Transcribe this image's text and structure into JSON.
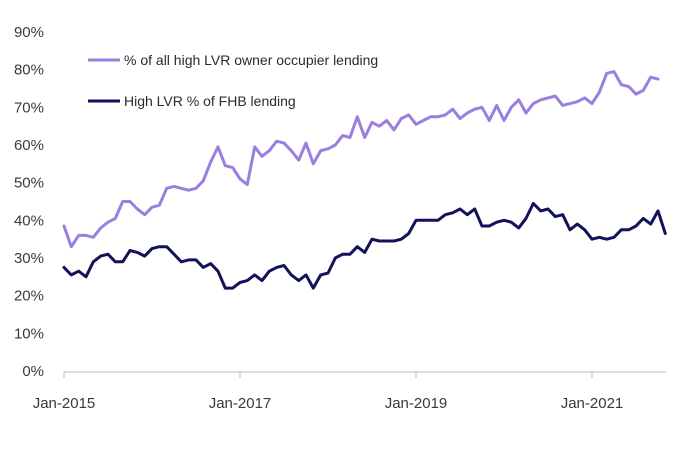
{
  "chart_data": {
    "type": "line",
    "title": "",
    "xlabel": "",
    "ylabel": "",
    "x_start": "Jan-2015",
    "x_tick_labels": [
      "Jan-2015",
      "Jan-2017",
      "Jan-2019",
      "Jan-2021"
    ],
    "y_ticks": [
      0,
      10,
      20,
      30,
      40,
      50,
      60,
      70,
      80,
      90
    ],
    "y_tick_labels": [
      "0%",
      "10%",
      "20%",
      "30%",
      "40%",
      "50%",
      "60%",
      "70%",
      "80%",
      "90%"
    ],
    "ylim": [
      0,
      90
    ],
    "grid": false,
    "legend_position": "top-left",
    "series": [
      {
        "name": "% of all high LVR owner occupier lending",
        "color": "#9a7fe0",
        "values": [
          38.5,
          33,
          36,
          36,
          35.5,
          38,
          39.5,
          40.5,
          45,
          45,
          43,
          41.5,
          43.5,
          44,
          48.5,
          49,
          48.5,
          48,
          48.5,
          50.5,
          55.5,
          59.5,
          54.5,
          54,
          51,
          49.5,
          59.5,
          57,
          58.5,
          61,
          60.5,
          58.5,
          56,
          60.5,
          55,
          58.5,
          59,
          60,
          62.5,
          62,
          67.5,
          62,
          66,
          65,
          66.5,
          64,
          67,
          68,
          65.5,
          66.5,
          67.5,
          67.5,
          68,
          69.5,
          67,
          68.5,
          69.5,
          70,
          66.5,
          70.5,
          66.5,
          70,
          72,
          68.5,
          71,
          72,
          72.5,
          73,
          70.5,
          71,
          71.5,
          72.5,
          71,
          74,
          79,
          79.5,
          76,
          75.5,
          73.5,
          74.5,
          78,
          77.5
        ]
      },
      {
        "name": "High LVR % of FHB lending",
        "color": "#12125a",
        "values": [
          27.5,
          25.5,
          26.5,
          25,
          29,
          30.5,
          31,
          29,
          29,
          32,
          31.5,
          30.5,
          32.5,
          33,
          33,
          31,
          29,
          29.5,
          29.5,
          27.5,
          28.5,
          26.5,
          22,
          22,
          23.5,
          24,
          25.5,
          24,
          26.5,
          27.5,
          28,
          25.5,
          24,
          25.5,
          22,
          25.5,
          26,
          30,
          31,
          31,
          33,
          31.5,
          35,
          34.5,
          34.5,
          34.5,
          35,
          36.5,
          40,
          40,
          40,
          40,
          41.5,
          42,
          43,
          41.5,
          43,
          38.5,
          38.5,
          39.5,
          40,
          39.5,
          38,
          40.5,
          44.5,
          42.5,
          43,
          41,
          41.5,
          37.5,
          39,
          37.5,
          35,
          35.5,
          35,
          35.5,
          37.5,
          37.5,
          38.5,
          40.5,
          39,
          42.5,
          36.5
        ]
      }
    ]
  }
}
